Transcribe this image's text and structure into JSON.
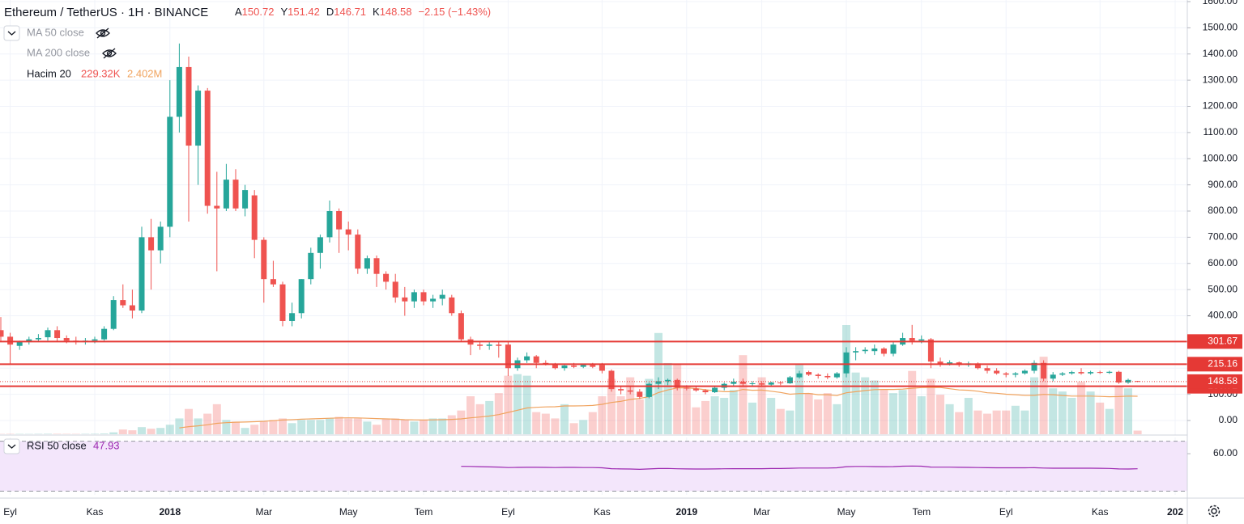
{
  "chart_data": {
    "type": "candlestick",
    "title": "Ethereum / TetherUS · 1H · BINANCE",
    "ohlc_prefixes": [
      "A",
      "Y",
      "D",
      "K"
    ],
    "change": "−2.15 (−1.43%)",
    "indicators": {
      "ma50": "MA 50 close",
      "ma200": "MA 200 close",
      "volume_name": "Hacim 20",
      "volume_value": "229.32K",
      "volume_ma_value": "2.402M"
    },
    "categories": [
      null,
      "Eyl",
      null,
      null,
      null,
      null,
      null,
      null,
      null,
      null,
      "Kas",
      null,
      null,
      null,
      null,
      null,
      null,
      null,
      "2018",
      null,
      null,
      null,
      null,
      null,
      null,
      null,
      null,
      null,
      "Mar",
      null,
      null,
      null,
      null,
      null,
      null,
      null,
      null,
      "May",
      null,
      null,
      null,
      null,
      null,
      null,
      null,
      "Tem",
      null,
      null,
      null,
      null,
      null,
      null,
      null,
      null,
      "Eyl",
      null,
      null,
      null,
      null,
      null,
      null,
      null,
      null,
      null,
      "Kas",
      null,
      null,
      null,
      null,
      null,
      null,
      null,
      null,
      "2019",
      null,
      null,
      null,
      null,
      null,
      null,
      null,
      "Mar",
      null,
      null,
      null,
      null,
      null,
      null,
      null,
      null,
      "May",
      null,
      null,
      null,
      null,
      null,
      null,
      null,
      "Tem",
      null,
      null,
      null,
      null,
      null,
      null,
      null,
      null,
      "Eyl",
      null,
      null,
      null,
      null,
      null,
      null,
      null,
      null,
      null,
      "Kas",
      null,
      null,
      null,
      null,
      null,
      null,
      null,
      "202"
    ],
    "open": [
      345,
      320,
      285,
      300,
      310,
      318,
      345,
      315,
      305,
      300,
      305,
      310,
      350,
      460,
      440,
      420,
      700,
      650,
      740,
      1160,
      1350,
      1050,
      1260,
      820,
      810,
      920,
      810,
      860,
      690,
      540,
      520,
      380,
      410,
      540,
      640,
      700,
      800,
      730,
      710,
      580,
      620,
      560,
      530,
      470,
      455,
      490,
      455,
      465,
      470,
      410,
      310,
      290,
      285,
      290,
      290,
      200,
      230,
      245,
      220,
      215,
      200,
      210,
      205,
      212,
      212,
      190,
      120,
      115,
      110,
      90,
      140,
      150,
      155,
      125,
      122,
      115,
      108,
      125,
      140,
      148,
      140,
      142,
      137,
      145,
      142,
      165,
      185,
      175,
      170,
      165,
      180,
      260,
      265,
      265,
      275,
      255,
      290,
      315,
      305,
      310,
      225,
      215,
      222,
      212,
      218,
      200,
      190,
      180,
      175,
      180,
      190,
      220,
      160,
      175,
      180,
      185,
      180,
      185,
      182,
      186,
      145,
      150.72,
      null,
      null,
      null,
      null
    ],
    "high": [
      395,
      335,
      305,
      320,
      330,
      355,
      360,
      325,
      320,
      315,
      320,
      360,
      475,
      520,
      500,
      740,
      770,
      760,
      1300,
      1440,
      1390,
      1280,
      1270,
      950,
      980,
      960,
      900,
      880,
      700,
      610,
      530,
      450,
      540,
      660,
      710,
      840,
      810,
      760,
      730,
      630,
      630,
      570,
      560,
      510,
      500,
      500,
      480,
      500,
      480,
      420,
      320,
      300,
      300,
      300,
      300,
      240,
      260,
      250,
      230,
      220,
      215,
      220,
      215,
      220,
      220,
      195,
      130,
      130,
      120,
      145,
      165,
      160,
      160,
      135,
      130,
      120,
      130,
      145,
      160,
      160,
      150,
      150,
      148,
      150,
      170,
      190,
      190,
      180,
      180,
      185,
      280,
      280,
      280,
      290,
      280,
      300,
      335,
      365,
      325,
      315,
      240,
      230,
      225,
      225,
      222,
      210,
      200,
      185,
      185,
      195,
      230,
      230,
      185,
      185,
      190,
      200,
      190,
      190,
      190,
      190,
      160,
      151.42,
      null,
      null,
      null,
      null
    ],
    "low": [
      300,
      215,
      270,
      290,
      300,
      305,
      300,
      295,
      290,
      290,
      295,
      305,
      345,
      430,
      390,
      410,
      500,
      600,
      700,
      1100,
      760,
      900,
      790,
      570,
      800,
      800,
      780,
      620,
      450,
      510,
      360,
      360,
      390,
      520,
      580,
      680,
      640,
      650,
      560,
      560,
      510,
      500,
      450,
      400,
      430,
      440,
      430,
      440,
      400,
      300,
      250,
      270,
      270,
      240,
      170,
      190,
      220,
      200,
      210,
      195,
      190,
      200,
      200,
      200,
      180,
      110,
      100,
      100,
      82,
      85,
      120,
      135,
      115,
      115,
      110,
      100,
      105,
      115,
      130,
      130,
      130,
      132,
      130,
      135,
      140,
      160,
      170,
      160,
      158,
      160,
      165,
      230,
      255,
      250,
      245,
      245,
      285,
      290,
      295,
      200,
      205,
      210,
      205,
      205,
      195,
      180,
      175,
      165,
      165,
      175,
      180,
      150,
      150,
      170,
      175,
      175,
      175,
      178,
      178,
      140,
      140,
      146.71,
      null,
      null,
      null,
      null
    ],
    "close": [
      320,
      290,
      300,
      310,
      315,
      345,
      315,
      305,
      300,
      305,
      310,
      350,
      460,
      440,
      420,
      700,
      650,
      740,
      1160,
      1350,
      1050,
      1260,
      820,
      810,
      920,
      810,
      880,
      690,
      540,
      520,
      380,
      410,
      540,
      640,
      700,
      800,
      730,
      710,
      580,
      620,
      560,
      530,
      470,
      455,
      490,
      455,
      465,
      480,
      410,
      310,
      290,
      285,
      290,
      285,
      200,
      230,
      245,
      220,
      215,
      200,
      210,
      205,
      212,
      205,
      190,
      120,
      115,
      110,
      90,
      140,
      150,
      155,
      125,
      122,
      115,
      108,
      125,
      140,
      148,
      140,
      142,
      137,
      145,
      142,
      165,
      180,
      175,
      170,
      165,
      180,
      260,
      265,
      270,
      275,
      255,
      290,
      315,
      305,
      310,
      225,
      215,
      222,
      212,
      218,
      200,
      190,
      180,
      175,
      180,
      190,
      220,
      160,
      175,
      180,
      185,
      180,
      185,
      182,
      186,
      145,
      155,
      148.58,
      null,
      null,
      null,
      null
    ],
    "volume": [
      20000,
      25000,
      22000,
      20000,
      25000,
      30000,
      28000,
      25000,
      22000,
      25000,
      30000,
      45000,
      120000,
      300000,
      250000,
      450000,
      350000,
      400000,
      600000,
      1000000,
      1600000,
      1000000,
      1300000,
      1900000,
      900000,
      800000,
      400000,
      600000,
      800000,
      900000,
      1000000,
      700000,
      900000,
      900000,
      900000,
      1000000,
      1100000,
      1000000,
      1000000,
      800000,
      600000,
      1000000,
      1000000,
      900000,
      800000,
      900000,
      1000000,
      1000000,
      1200000,
      1500000,
      2400000,
      1900000,
      2100000,
      2600000,
      3700000,
      3800000,
      3700000,
      1400000,
      1300000,
      1000000,
      1900000,
      700000,
      900000,
      1400000,
      2400000,
      3500000,
      2400000,
      3600000,
      2200000,
      3500000,
      6400000,
      4500000,
      4400000,
      3000000,
      1700000,
      2100000,
      2400000,
      2300000,
      2800000,
      5000000,
      2000000,
      3600000,
      2300000,
      1600000,
      1500000,
      4400000,
      2600000,
      2200000,
      2600000,
      1900000,
      6900000,
      3900000,
      3600000,
      3400000,
      2800000,
      2600000,
      2800000,
      4000000,
      2400000,
      3500000,
      2500000,
      1900000,
      1400000,
      2300000,
      1500000,
      1300000,
      1500000,
      1500000,
      1800000,
      1500000,
      3600000,
      4900000,
      2900000,
      2700000,
      2300000,
      3300000,
      2700000,
      2000000,
      1600000,
      3000000,
      2900000,
      229320,
      null,
      null,
      null,
      null
    ],
    "volume_ma": [
      null,
      null,
      null,
      null,
      null,
      null,
      null,
      null,
      null,
      null,
      null,
      null,
      null,
      null,
      null,
      null,
      null,
      null,
      null,
      400000,
      480000,
      530000,
      600000,
      690000,
      730000,
      760000,
      770000,
      790000,
      820000,
      860000,
      900000,
      920000,
      950000,
      970000,
      990000,
      1010000,
      1030000,
      1040000,
      1030000,
      1010000,
      990000,
      970000,
      950000,
      920000,
      910000,
      900000,
      910000,
      920000,
      940000,
      970000,
      1040000,
      1090000,
      1150000,
      1240000,
      1380000,
      1520000,
      1660000,
      1700000,
      1730000,
      1740000,
      1790000,
      1790000,
      1800000,
      1820000,
      1890000,
      2010000,
      2080000,
      2200000,
      2270000,
      2370000,
      2630000,
      2800000,
      2930000,
      2940000,
      2890000,
      2810000,
      2750000,
      2690000,
      2690000,
      2830000,
      2780000,
      2790000,
      2720000,
      2640000,
      2530000,
      2570000,
      2580000,
      2500000,
      2500000,
      2450000,
      2620000,
      2690000,
      2760000,
      2820000,
      2830000,
      2830000,
      2850000,
      2910000,
      2950000,
      2960000,
      2960000,
      2880000,
      2800000,
      2780000,
      2720000,
      2620000,
      2590000,
      2530000,
      2500000,
      2460000,
      2460000,
      2520000,
      2500000,
      2450000,
      2410000,
      2410000,
      2410000,
      2390000,
      2370000,
      2380000,
      2410000,
      2402000,
      null,
      null,
      null,
      null
    ],
    "ylim": [
      0,
      1600
    ],
    "yticks": [
      {
        "value": 0,
        "label": "0.00"
      },
      {
        "value": 100,
        "label": "100.00"
      },
      {
        "value": 200,
        "label": "200.00"
      },
      {
        "value": 300,
        "label": "300.00"
      },
      {
        "value": 400,
        "label": "400.00"
      },
      {
        "value": 500,
        "label": "500.00"
      },
      {
        "value": 600,
        "label": "600.00"
      },
      {
        "value": 700,
        "label": "700.00"
      },
      {
        "value": 800,
        "label": "800.00"
      },
      {
        "value": 900,
        "label": "900.00"
      },
      {
        "value": 1000,
        "label": "1000.00"
      },
      {
        "value": 1100,
        "label": "1100.00"
      },
      {
        "value": 1200,
        "label": "1200.00"
      },
      {
        "value": 1300,
        "label": "1300.00"
      },
      {
        "value": 1400,
        "label": "1400.00"
      },
      {
        "value": 1500,
        "label": "1500.00"
      },
      {
        "value": 1600,
        "label": "1600.00"
      }
    ],
    "levels": [
      301.67,
      215.16,
      130.72
    ],
    "grid": true,
    "colors": {
      "up": "#26a69a",
      "down": "#ef5350",
      "level": "#e53935",
      "volume_ma": "#f0a35e",
      "rsi": "#9c27b0",
      "rsi_band": "#f3e6fb",
      "change": "#ef5350"
    },
    "rsi": {
      "name": "RSI 50 close",
      "values": [
        null,
        null,
        null,
        null,
        null,
        null,
        null,
        null,
        null,
        null,
        null,
        null,
        null,
        null,
        null,
        null,
        null,
        null,
        null,
        null,
        null,
        null,
        null,
        null,
        null,
        null,
        null,
        null,
        null,
        null,
        null,
        null,
        null,
        null,
        null,
        null,
        null,
        null,
        null,
        null,
        null,
        null,
        null,
        null,
        null,
        null,
        null,
        null,
        null,
        49.9,
        49.8,
        49.6,
        49.4,
        49.3,
        48.9,
        49.0,
        49.1,
        49.1,
        49.0,
        48.9,
        49.0,
        49.0,
        48.9,
        48.9,
        48.7,
        48.0,
        47.8,
        47.7,
        47.5,
        47.8,
        48.1,
        48.2,
        47.9,
        47.8,
        47.7,
        47.7,
        47.8,
        47.9,
        48.0,
        48.0,
        48.0,
        48.0,
        48.1,
        48.1,
        48.3,
        48.5,
        48.5,
        48.5,
        48.5,
        48.7,
        49.6,
        49.8,
        49.8,
        49.7,
        49.6,
        49.7,
        50.0,
        50.1,
        50.0,
        49.3,
        49.2,
        49.2,
        49.1,
        49.0,
        48.9,
        48.8,
        48.7,
        48.7,
        48.7,
        48.7,
        48.8,
        48.5,
        48.4,
        48.4,
        48.4,
        48.4,
        48.4,
        48.3,
        48.2,
        47.8,
        47.7,
        47.93,
        null,
        null,
        null,
        null
      ],
      "ylim": [
        27,
        73
      ],
      "yticks": [
        {
          "value": 60,
          "label": "60.00"
        }
      ],
      "bands": [
        70,
        30
      ]
    }
  }
}
